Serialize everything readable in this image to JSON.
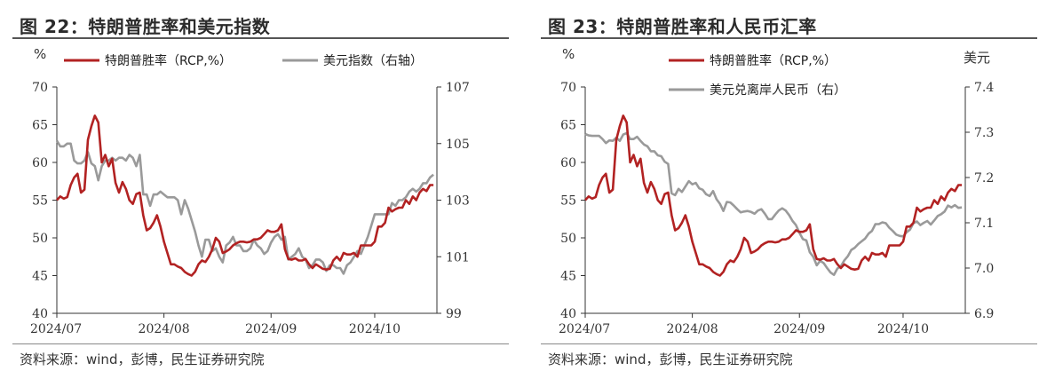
{
  "chart_data": [
    {
      "id": "fig22",
      "type": "line",
      "title": "图 22：特朗普胜率和美元指数",
      "source": "资料来源：wind，彭博，民生证券研究院",
      "left_unit": "%",
      "right_unit": "",
      "left_axis": {
        "min": 40,
        "max": 70,
        "ticks": [
          40,
          45,
          50,
          55,
          60,
          65,
          70
        ]
      },
      "right_axis": {
        "min": 99,
        "max": 107,
        "ticks": [
          99,
          101,
          103,
          105,
          107
        ]
      },
      "x_axis": {
        "ticks": [
          "2024/07",
          "2024/08",
          "2024/09",
          "2024/10"
        ],
        "tick_index": [
          0,
          31,
          62,
          92
        ],
        "max_index": 110
      },
      "series": [
        {
          "name": "特朗普胜率（RCP,%）",
          "axis": "left",
          "color": "#b22222",
          "x": [
            0,
            1,
            2,
            3,
            4,
            5,
            6,
            7,
            8,
            9,
            10,
            11,
            12,
            13,
            14,
            15,
            16,
            17,
            18,
            19,
            20,
            21,
            22,
            23,
            24,
            25,
            26,
            27,
            28,
            29,
            30,
            31,
            32,
            33,
            34,
            35,
            36,
            37,
            38,
            39,
            40,
            41,
            42,
            43,
            44,
            45,
            46,
            47,
            48,
            49,
            50,
            51,
            52,
            53,
            54,
            55,
            56,
            57,
            58,
            59,
            60,
            61,
            62,
            63,
            64,
            65,
            66,
            67,
            68,
            69,
            70,
            71,
            72,
            73,
            74,
            75,
            76,
            77,
            78,
            79,
            80,
            81,
            82,
            83,
            84,
            85,
            86,
            87,
            88,
            89,
            90,
            91,
            92,
            93,
            94,
            95,
            96,
            97,
            98,
            99,
            100,
            101,
            102,
            103,
            104,
            105,
            106,
            107,
            108,
            109
          ],
          "values": [
            55.0,
            55.5,
            55.2,
            55.4,
            57.0,
            58.0,
            58.5,
            56.0,
            56.4,
            63.0,
            64.8,
            66.2,
            65.3,
            60.0,
            61.0,
            59.5,
            60.5,
            57.3,
            56.0,
            57.4,
            56.5,
            55.0,
            54.5,
            55.8,
            56.0,
            53.0,
            51.0,
            51.3,
            52.0,
            53.0,
            51.5,
            49.5,
            48.0,
            46.5,
            46.5,
            46.2,
            46.0,
            45.5,
            45.2,
            45.0,
            45.5,
            46.5,
            47.0,
            46.8,
            47.5,
            48.5,
            50.0,
            49.5,
            48.0,
            48.2,
            48.5,
            49.0,
            49.3,
            49.5,
            49.5,
            49.4,
            49.5,
            49.8,
            49.8,
            50.0,
            50.5,
            51.0,
            50.8,
            50.8,
            51.0,
            51.8,
            48.5,
            47.2,
            47.1,
            47.3,
            47.0,
            47.0,
            47.2,
            46.5,
            46.0,
            46.5,
            46.2,
            45.9,
            45.8,
            45.9,
            47.0,
            47.5,
            47.0,
            48.0,
            47.8,
            47.8,
            48.0,
            47.5,
            49.0,
            49.0,
            49.0,
            49.0,
            49.5,
            51.5,
            51.5,
            52.0,
            54.0,
            53.5,
            53.8,
            54.0,
            54.0,
            55.0,
            54.5,
            55.5,
            55.0,
            56.0,
            56.5,
            56.2,
            57.0,
            57.0
          ]
        },
        {
          "name": "美元指数（右轴）",
          "axis": "right",
          "color": "#9a9a9a",
          "x": [
            0,
            1,
            2,
            3,
            4,
            5,
            6,
            7,
            8,
            9,
            10,
            11,
            12,
            13,
            14,
            15,
            16,
            17,
            18,
            19,
            20,
            21,
            22,
            23,
            24,
            25,
            26,
            27,
            28,
            29,
            30,
            31,
            32,
            33,
            34,
            35,
            36,
            37,
            38,
            39,
            40,
            41,
            42,
            43,
            44,
            45,
            46,
            47,
            48,
            49,
            50,
            51,
            52,
            53,
            54,
            55,
            56,
            57,
            58,
            59,
            60,
            61,
            62,
            63,
            64,
            65,
            66,
            67,
            68,
            69,
            70,
            71,
            72,
            73,
            74,
            75,
            76,
            77,
            78,
            79,
            80,
            81,
            82,
            83,
            84,
            85,
            86,
            87,
            88,
            89,
            90,
            91,
            92,
            93,
            94,
            95,
            96,
            97,
            98,
            99,
            100,
            101,
            102,
            103,
            104,
            105,
            106,
            107,
            108,
            109
          ],
          "values": [
            105.1,
            104.9,
            104.9,
            105.0,
            105.0,
            104.4,
            104.3,
            104.3,
            104.4,
            104.7,
            104.3,
            104.2,
            103.7,
            104.2,
            104.4,
            104.4,
            104.5,
            104.4,
            104.5,
            104.5,
            104.4,
            104.6,
            104.5,
            104.2,
            104.6,
            103.2,
            103.2,
            102.8,
            103.2,
            103.2,
            103.3,
            103.2,
            103.1,
            103.1,
            103.1,
            103.0,
            102.5,
            103.0,
            102.7,
            102.3,
            101.9,
            101.4,
            101.0,
            101.6,
            101.6,
            101.2,
            101.3,
            101.0,
            100.8,
            101.4,
            101.5,
            101.7,
            101.4,
            101.4,
            101.2,
            101.2,
            101.3,
            101.6,
            101.4,
            101.3,
            101.1,
            101.2,
            101.5,
            101.7,
            101.8,
            101.6,
            101.7,
            100.9,
            101.0,
            101.1,
            101.3,
            101.0,
            100.9,
            100.6,
            100.7,
            100.9,
            100.9,
            100.8,
            100.5,
            100.7,
            100.7,
            100.6,
            100.6,
            100.4,
            100.7,
            100.8,
            101.0,
            101.2,
            101.1,
            101.4,
            101.7,
            102.1,
            102.5,
            102.5,
            102.5,
            102.5,
            102.5,
            102.9,
            102.8,
            103.0,
            103.0,
            103.1,
            103.3,
            103.4,
            103.3,
            103.4,
            103.6,
            103.6,
            103.8,
            103.9
          ]
        }
      ]
    },
    {
      "id": "fig23",
      "type": "line",
      "title": "图 23：特朗普胜率和人民币汇率",
      "source": "资料来源：wind，彭博，民生证券研究院",
      "left_unit": "%",
      "right_unit": "美元",
      "left_axis": {
        "min": 40,
        "max": 70,
        "ticks": [
          40,
          45,
          50,
          55,
          60,
          65,
          70
        ]
      },
      "right_axis": {
        "min": 6.9,
        "max": 7.4,
        "ticks": [
          6.9,
          7.0,
          7.1,
          7.2,
          7.3,
          7.4
        ]
      },
      "x_axis": {
        "ticks": [
          "2024/07",
          "2024/08",
          "2024/09",
          "2024/10"
        ],
        "tick_index": [
          0,
          31,
          62,
          92
        ],
        "max_index": 110
      },
      "series": [
        {
          "name": "特朗普胜率（RCP,%）",
          "axis": "left",
          "color": "#b22222",
          "x": [
            0,
            1,
            2,
            3,
            4,
            5,
            6,
            7,
            8,
            9,
            10,
            11,
            12,
            13,
            14,
            15,
            16,
            17,
            18,
            19,
            20,
            21,
            22,
            23,
            24,
            25,
            26,
            27,
            28,
            29,
            30,
            31,
            32,
            33,
            34,
            35,
            36,
            37,
            38,
            39,
            40,
            41,
            42,
            43,
            44,
            45,
            46,
            47,
            48,
            49,
            50,
            51,
            52,
            53,
            54,
            55,
            56,
            57,
            58,
            59,
            60,
            61,
            62,
            63,
            64,
            65,
            66,
            67,
            68,
            69,
            70,
            71,
            72,
            73,
            74,
            75,
            76,
            77,
            78,
            79,
            80,
            81,
            82,
            83,
            84,
            85,
            86,
            87,
            88,
            89,
            90,
            91,
            92,
            93,
            94,
            95,
            96,
            97,
            98,
            99,
            100,
            101,
            102,
            103,
            104,
            105,
            106,
            107,
            108,
            109
          ],
          "values": [
            55.0,
            55.5,
            55.2,
            55.4,
            57.0,
            58.0,
            58.5,
            56.0,
            56.4,
            63.0,
            64.8,
            66.2,
            65.3,
            60.0,
            61.0,
            59.5,
            60.5,
            57.3,
            56.0,
            57.4,
            56.5,
            55.0,
            54.5,
            55.8,
            56.0,
            53.0,
            51.0,
            51.3,
            52.0,
            53.0,
            51.5,
            49.5,
            48.0,
            46.5,
            46.5,
            46.2,
            46.0,
            45.5,
            45.2,
            45.0,
            45.5,
            46.5,
            47.0,
            46.8,
            47.5,
            48.5,
            50.0,
            49.5,
            48.0,
            48.2,
            48.5,
            49.0,
            49.3,
            49.5,
            49.5,
            49.4,
            49.5,
            49.8,
            49.8,
            50.0,
            50.5,
            51.0,
            50.8,
            50.8,
            51.0,
            51.8,
            48.5,
            47.2,
            47.1,
            47.3,
            47.0,
            47.0,
            47.2,
            46.5,
            46.0,
            46.5,
            46.2,
            45.9,
            45.8,
            45.9,
            47.0,
            47.5,
            47.0,
            48.0,
            47.8,
            47.8,
            48.0,
            47.5,
            49.0,
            49.0,
            49.0,
            49.0,
            49.5,
            51.5,
            51.5,
            52.0,
            54.0,
            53.5,
            53.8,
            54.0,
            54.0,
            55.0,
            54.5,
            55.5,
            55.0,
            56.0,
            56.5,
            56.2,
            57.0,
            57.0
          ]
        },
        {
          "name": "美元兑离岸人民币（右）",
          "axis": "right",
          "color": "#9a9a9a",
          "x": [
            0,
            1,
            2,
            3,
            4,
            5,
            6,
            7,
            8,
            9,
            10,
            11,
            12,
            13,
            14,
            15,
            16,
            17,
            18,
            19,
            20,
            21,
            22,
            23,
            24,
            25,
            26,
            27,
            28,
            29,
            30,
            31,
            32,
            33,
            34,
            35,
            36,
            37,
            38,
            39,
            40,
            41,
            42,
            43,
            44,
            45,
            46,
            47,
            48,
            49,
            50,
            51,
            52,
            53,
            54,
            55,
            56,
            57,
            58,
            59,
            60,
            61,
            62,
            63,
            64,
            65,
            66,
            67,
            68,
            69,
            70,
            71,
            72,
            73,
            74,
            75,
            76,
            77,
            78,
            79,
            80,
            81,
            82,
            83,
            84,
            85,
            86,
            87,
            88,
            89,
            90,
            91,
            92,
            93,
            94,
            95,
            96,
            97,
            98,
            99,
            100,
            101,
            102,
            103,
            104,
            105,
            106,
            107,
            108,
            109
          ],
          "values": [
            7.296,
            7.293,
            7.292,
            7.292,
            7.292,
            7.285,
            7.276,
            7.282,
            7.281,
            7.288,
            7.281,
            7.295,
            7.298,
            7.285,
            7.285,
            7.29,
            7.281,
            7.273,
            7.269,
            7.258,
            7.258,
            7.249,
            7.247,
            7.235,
            7.23,
            7.165,
            7.161,
            7.175,
            7.168,
            7.18,
            7.192,
            7.185,
            7.188,
            7.176,
            7.173,
            7.163,
            7.159,
            7.17,
            7.152,
            7.142,
            7.126,
            7.146,
            7.145,
            7.138,
            7.13,
            7.123,
            7.125,
            7.126,
            7.124,
            7.12,
            7.127,
            7.13,
            7.12,
            7.108,
            7.108,
            7.118,
            7.127,
            7.132,
            7.127,
            7.117,
            7.104,
            7.095,
            7.078,
            7.064,
            7.061,
            7.035,
            7.025,
            7.006,
            7.016,
            7.011,
            7.0,
            6.99,
            6.985,
            6.999,
            7.004,
            7.017,
            7.026,
            7.04,
            7.045,
            7.053,
            7.059,
            7.065,
            7.076,
            7.082,
            7.097,
            7.097,
            7.101,
            7.099,
            7.089,
            7.082,
            7.074,
            7.071,
            7.07,
            7.079,
            7.085,
            7.099,
            7.103,
            7.095,
            7.1,
            7.104,
            7.096,
            7.105,
            7.115,
            7.119,
            7.125,
            7.138,
            7.134,
            7.139,
            7.133,
            7.134
          ]
        }
      ]
    }
  ]
}
